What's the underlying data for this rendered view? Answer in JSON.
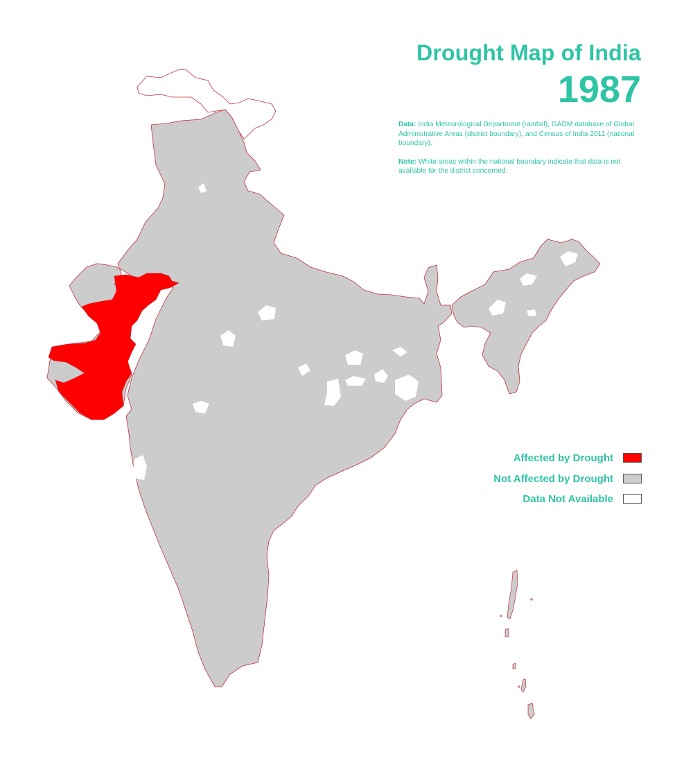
{
  "title": "Drought Map of India",
  "year": "1987",
  "notes": {
    "data_label": "Data:",
    "data_text": " India Meteorological Department (rainfall), GADM database of Global Administrative Areas (district boundary), and Census of India 2011 (national boundary).",
    "note_label": "Note:",
    "note_text": " White areas within the national boundary indicate that data is not available for the district concerned."
  },
  "legend": [
    {
      "label": "Affected by Drought",
      "color": "#ff0000"
    },
    {
      "label": "Not Affected by Drought",
      "color": "#cccccc"
    },
    {
      "label": "Data Not Available",
      "color": "#ffffff"
    }
  ],
  "colors": {
    "accent": "#2ec4a5",
    "affected": "#ff0000",
    "not_affected": "#cccccc",
    "no_data": "#ffffff",
    "boundary": "#c0303a"
  }
}
